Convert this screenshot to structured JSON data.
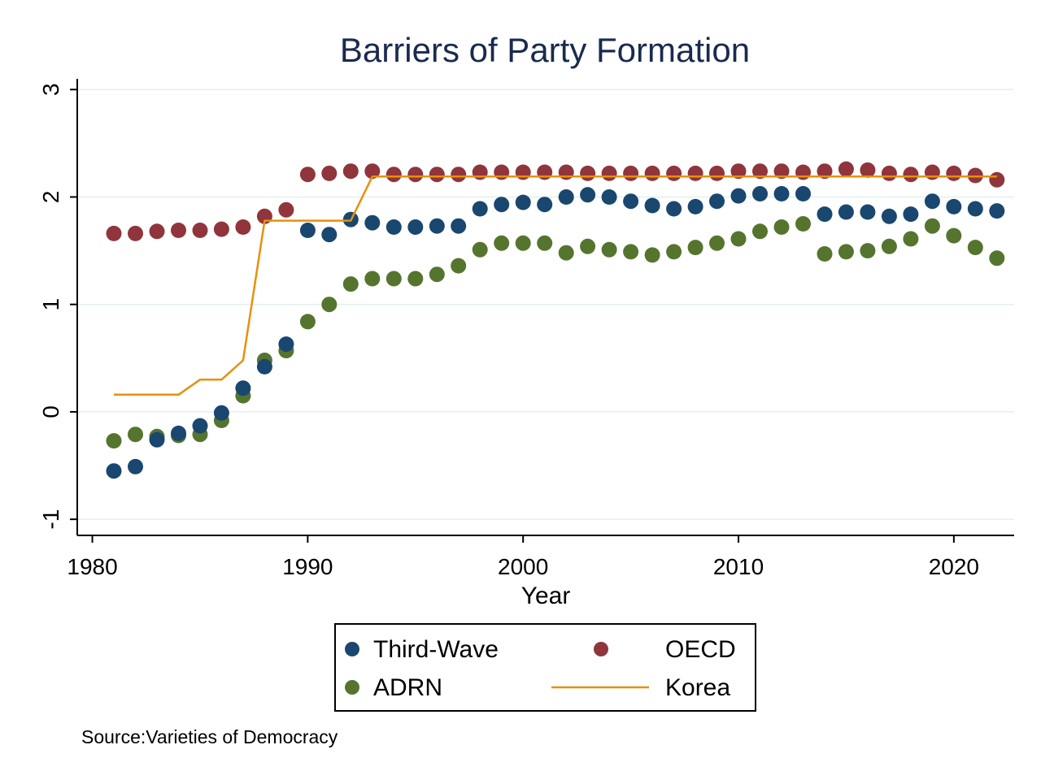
{
  "chart_data": {
    "type": "scatter",
    "title": "Barriers of Party Formation",
    "xlabel": "Year",
    "ylabel": "",
    "xlim": [
      1979.3,
      2022.8
    ],
    "ylim": [
      -1.15,
      3.1
    ],
    "xticks": [
      "1980",
      "1990",
      "2000",
      "2010",
      "2020"
    ],
    "yticks": [
      "-1",
      "0",
      "1",
      "2",
      "3"
    ],
    "grid": "horizontal",
    "legend_position": "bottom",
    "source": "Source:Varieties of Democracy",
    "x": [
      1981,
      1982,
      1983,
      1984,
      1985,
      1986,
      1987,
      1988,
      1989,
      1990,
      1991,
      1992,
      1993,
      1994,
      1995,
      1996,
      1997,
      1998,
      1999,
      2000,
      2001,
      2002,
      2003,
      2004,
      2005,
      2006,
      2007,
      2008,
      2009,
      2010,
      2011,
      2012,
      2013,
      2014,
      2015,
      2016,
      2017,
      2018,
      2019,
      2020,
      2021,
      2022
    ],
    "series": [
      {
        "name": "Third-Wave",
        "kind": "scatter",
        "color": "#1a476f",
        "values": [
          -0.55,
          -0.51,
          -0.26,
          -0.2,
          -0.13,
          -0.01,
          0.22,
          0.42,
          0.63,
          1.69,
          1.65,
          1.79,
          1.76,
          1.72,
          1.72,
          1.73,
          1.73,
          1.89,
          1.93,
          1.95,
          1.93,
          2.0,
          2.02,
          2.0,
          1.96,
          1.92,
          1.89,
          1.91,
          1.96,
          2.01,
          2.03,
          2.03,
          2.03,
          1.84,
          1.86,
          1.86,
          1.82,
          1.84,
          1.96,
          1.91,
          1.89,
          1.87
        ]
      },
      {
        "name": "OECD",
        "kind": "scatter",
        "color": "#90353b",
        "values": [
          1.66,
          1.66,
          1.68,
          1.69,
          1.69,
          1.7,
          1.72,
          1.82,
          1.88,
          2.21,
          2.22,
          2.24,
          2.24,
          2.21,
          2.21,
          2.21,
          2.21,
          2.23,
          2.23,
          2.23,
          2.23,
          2.23,
          2.22,
          2.22,
          2.22,
          2.22,
          2.22,
          2.22,
          2.22,
          2.24,
          2.24,
          2.24,
          2.23,
          2.24,
          2.26,
          2.25,
          2.22,
          2.21,
          2.23,
          2.22,
          2.2,
          2.16
        ]
      },
      {
        "name": "ADRN",
        "kind": "scatter",
        "color": "#55752f",
        "values": [
          -0.27,
          -0.21,
          -0.23,
          -0.22,
          -0.21,
          -0.08,
          0.15,
          0.48,
          0.57,
          0.84,
          1.0,
          1.19,
          1.24,
          1.24,
          1.24,
          1.28,
          1.36,
          1.51,
          1.57,
          1.57,
          1.57,
          1.48,
          1.54,
          1.51,
          1.49,
          1.46,
          1.49,
          1.53,
          1.57,
          1.61,
          1.68,
          1.72,
          1.75,
          1.47,
          1.49,
          1.5,
          1.54,
          1.61,
          1.73,
          1.64,
          1.53,
          1.43
        ]
      },
      {
        "name": "Korea",
        "kind": "line",
        "color": "#e8900c",
        "points": [
          [
            1981,
            0.16
          ],
          [
            1984,
            0.16
          ],
          [
            1985,
            0.3
          ],
          [
            1986,
            0.3
          ],
          [
            1987,
            0.48
          ],
          [
            1988,
            1.78
          ],
          [
            1992,
            1.78
          ],
          [
            1993,
            2.19
          ],
          [
            2022,
            2.19
          ]
        ]
      }
    ]
  }
}
